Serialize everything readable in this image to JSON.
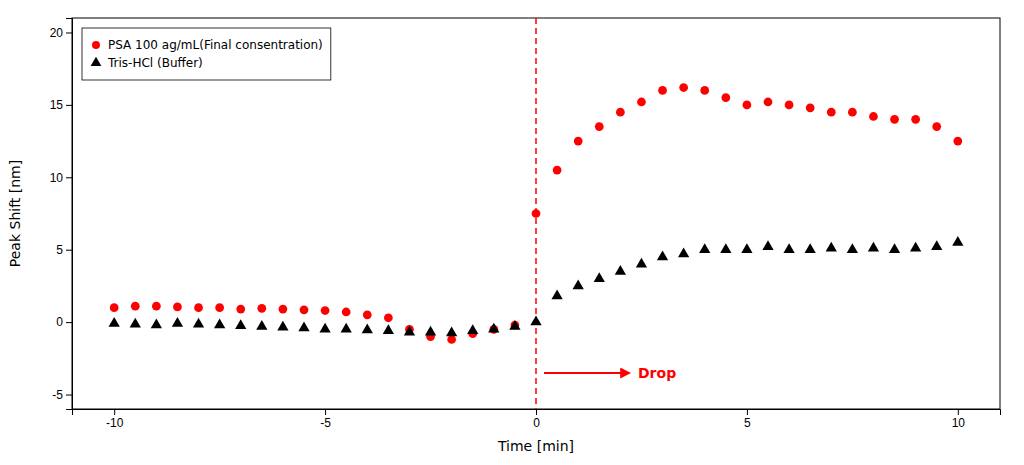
{
  "chart_data": {
    "type": "scatter",
    "xlabel": "Time [min]",
    "ylabel": "Peak Shift [nm]",
    "x": [
      -10,
      -9.5,
      -9,
      -8.5,
      -8,
      -7.5,
      -7,
      -6.5,
      -6,
      -5.5,
      -5,
      -4.5,
      -4,
      -3.5,
      -3,
      -2.5,
      -2,
      -1.5,
      -1,
      -0.5,
      0,
      0.5,
      1,
      1.5,
      2,
      2.5,
      3,
      3.5,
      4,
      4.5,
      5,
      5.5,
      6,
      6.5,
      7,
      7.5,
      8,
      8.5,
      9,
      9.5,
      10
    ],
    "series": [
      {
        "name": "PSA 100 ag/mL(Final consentration)",
        "color": "#FF0000",
        "marker": "circle",
        "values": [
          1.0,
          1.1,
          1.1,
          1.05,
          1.0,
          1.0,
          0.9,
          0.95,
          0.9,
          0.85,
          0.8,
          0.7,
          0.5,
          0.3,
          -0.5,
          -1.0,
          -1.2,
          -0.8,
          -0.5,
          -0.2,
          7.5,
          10.5,
          12.5,
          13.5,
          14.5,
          15.2,
          16.0,
          16.2,
          16.0,
          15.5,
          15.0,
          15.2,
          15.0,
          14.8,
          14.5,
          14.5,
          14.2,
          14.0,
          14.0,
          13.5,
          12.5
        ]
      },
      {
        "name": "Tris-HCl (Buffer)",
        "color": "#000000",
        "marker": "triangle",
        "values": [
          -0.1,
          -0.15,
          -0.2,
          -0.1,
          -0.15,
          -0.2,
          -0.25,
          -0.3,
          -0.35,
          -0.4,
          -0.5,
          -0.5,
          -0.55,
          -0.6,
          -0.7,
          -0.7,
          -0.75,
          -0.6,
          -0.5,
          -0.3,
          0.0,
          1.8,
          2.5,
          3.0,
          3.5,
          4.0,
          4.5,
          4.7,
          5.0,
          5.0,
          5.0,
          5.2,
          5.0,
          5.0,
          5.1,
          5.0,
          5.1,
          5.0,
          5.1,
          5.2,
          5.5
        ]
      }
    ],
    "annotations": [
      {
        "type": "vline",
        "x": 0,
        "color": "#FF0000",
        "line_style": "dashed"
      },
      {
        "type": "arrow",
        "text": "Drop",
        "color": "#FF0000"
      }
    ],
    "xlim": [
      -11,
      11
    ],
    "ylim": [
      -6,
      21
    ],
    "xticks": [
      -10,
      -5,
      0,
      5,
      10
    ],
    "yticks": [
      -5,
      0,
      5,
      10,
      15,
      20
    ],
    "grid": false,
    "legend": "upper left"
  }
}
